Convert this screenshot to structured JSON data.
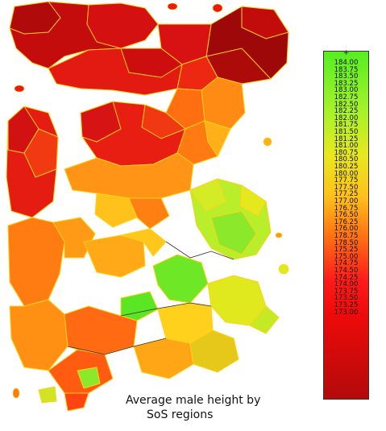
{
  "map": {
    "title_line1": "Average male height by",
    "title_line2": "SoS regions"
  },
  "legend": {
    "plus_marker": "+",
    "labels": [
      "184.00",
      "183.75",
      "183.50",
      "183.25",
      "183.00",
      "182.75",
      "182.50",
      "182.25",
      "182.00",
      "181.75",
      "181.50",
      "181.25",
      "181.00",
      "180.75",
      "180.50",
      "180.25",
      "180.00",
      "177.75",
      "177.50",
      "177.25",
      "177.00",
      "176.75",
      "176.50",
      "176.25",
      "176.00",
      "178.75",
      "178.50",
      "175.25",
      "175.00",
      "174.75",
      "174.50",
      "174.25",
      "174.00",
      "173.75",
      "173.50",
      "173.25",
      "173.00"
    ]
  },
  "colors": {
    "tall": "#55ee22",
    "mid_high": "#e8e81e",
    "mid": "#ffbf1a",
    "low_mid": "#ff7a12",
    "short": "#ee0a0a",
    "shortest": "#b30a0a",
    "region_border": "#ffd21a",
    "dark_border": "#333333"
  }
}
